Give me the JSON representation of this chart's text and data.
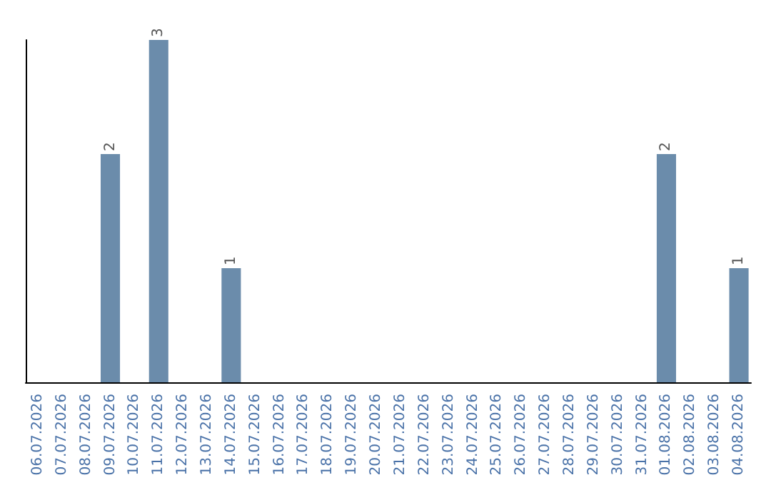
{
  "chart_data": {
    "type": "bar",
    "categories": [
      "06.07.2026",
      "07.07.2026",
      "08.07.2026",
      "09.07.2026",
      "10.07.2026",
      "11.07.2026",
      "12.07.2026",
      "13.07.2026",
      "14.07.2026",
      "15.07.2026",
      "16.07.2026",
      "17.07.2026",
      "18.07.2026",
      "19.07.2026",
      "20.07.2026",
      "21.07.2026",
      "22.07.2026",
      "23.07.2026",
      "24.07.2026",
      "25.07.2026",
      "26.07.2026",
      "27.07.2026",
      "28.07.2026",
      "29.07.2026",
      "30.07.2026",
      "31.07.2026",
      "01.08.2026",
      "02.08.2026",
      "03.08.2026",
      "04.08.2026"
    ],
    "values": [
      0,
      0,
      0,
      2,
      0,
      3,
      0,
      0,
      1,
      0,
      0,
      0,
      0,
      0,
      0,
      0,
      0,
      0,
      0,
      0,
      0,
      0,
      0,
      0,
      0,
      0,
      2,
      0,
      0,
      1
    ],
    "value_labels": [
      null,
      null,
      null,
      "2",
      null,
      "3",
      null,
      null,
      "1",
      null,
      null,
      null,
      null,
      null,
      null,
      null,
      null,
      null,
      null,
      null,
      null,
      null,
      null,
      null,
      null,
      null,
      "2",
      null,
      null,
      "1"
    ],
    "color": "#6b8cab",
    "ylim": [
      0,
      3
    ],
    "tick_labels": "x"
  }
}
